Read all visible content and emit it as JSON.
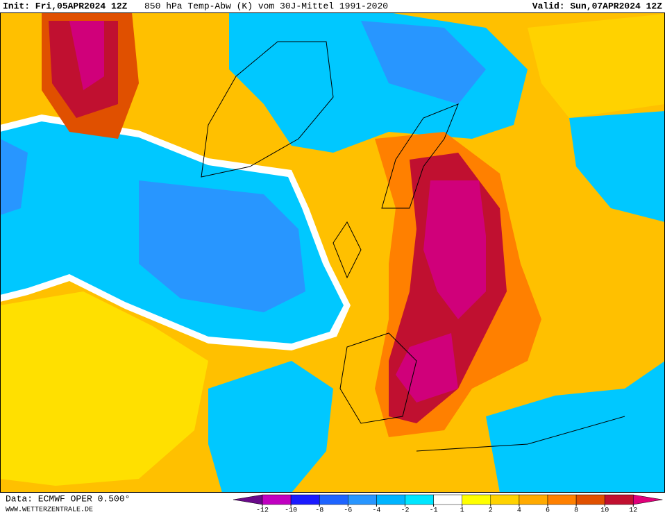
{
  "header": {
    "init": "Init: Fri,05APR2024 12Z",
    "title": "850 hPa Temp-Abw (K) vom 30J-Mittel 1991-2020",
    "valid": "Valid: Sun,07APR2024 12Z"
  },
  "footer": {
    "source": "Data: ECMWF OPER 0.500°",
    "site": "WWW.WETTERZENTRALE.DE"
  },
  "legend": {
    "ticks": [
      -12,
      -10,
      -8,
      -6,
      -4,
      -2,
      -1,
      1,
      2,
      4,
      6,
      8,
      10,
      12
    ],
    "colors": [
      "#6a0a8a",
      "#c000c0",
      "#1a1aff",
      "#1e64ff",
      "#2896ff",
      "#00b4ff",
      "#00e6ff",
      "#ffffff",
      "#ffff00",
      "#ffd200",
      "#ffaa00",
      "#ff8000",
      "#e05000",
      "#c01030",
      "#e0007a"
    ]
  }
}
